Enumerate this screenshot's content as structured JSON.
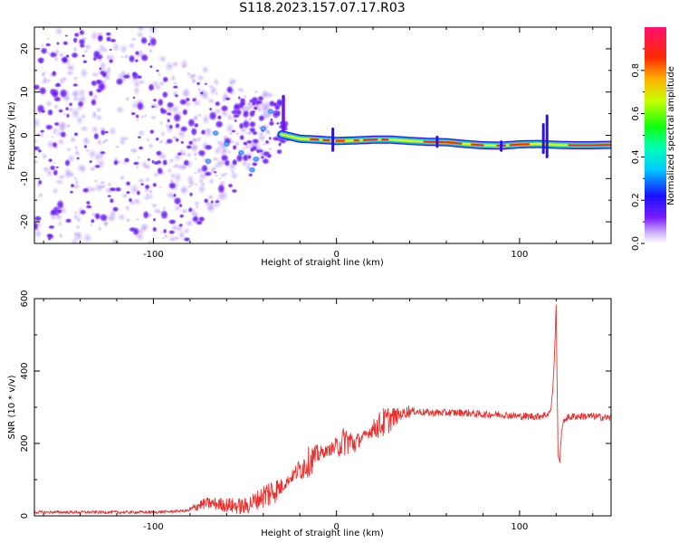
{
  "title": "S118.2023.157.07.17.R03",
  "chart_data": [
    {
      "type": "heatmap",
      "xlabel": "Height of straight line (km)",
      "ylabel": "Frequency (Hz)",
      "xlim": [
        -165,
        150
      ],
      "ylim": [
        -25,
        25
      ],
      "x_ticks": [
        -100,
        0,
        100
      ],
      "y_ticks": [
        -20,
        -10,
        0,
        10,
        20
      ],
      "colorbar": {
        "label": "Normalized spectral amplitude",
        "ticks": [
          "0.0",
          "0.2",
          "0.4",
          "0.6",
          "0.8"
        ],
        "range": [
          0,
          1
        ]
      },
      "ridge": {
        "x": [
          -30,
          -20,
          -10,
          0,
          10,
          20,
          30,
          40,
          50,
          60,
          70,
          80,
          90,
          100,
          110,
          120,
          130,
          140,
          150
        ],
        "y": [
          0.2,
          -0.8,
          -1.0,
          -1.3,
          -1.2,
          -1.0,
          -1.0,
          -1.3,
          -1.5,
          -1.6,
          -2.0,
          -2.3,
          -2.4,
          -2.1,
          -2.0,
          -2.2,
          -2.3,
          -2.3,
          -2.2
        ]
      }
    },
    {
      "type": "line",
      "xlabel": "Height of straight line (km)",
      "ylabel": "SNR (10 * v/v)",
      "xlim": [
        -165,
        150
      ],
      "ylim": [
        0,
        600
      ],
      "x_ticks": [
        -100,
        0,
        100
      ],
      "y_ticks": [
        0,
        200,
        400,
        600
      ],
      "color": "#e8312e",
      "series": [
        {
          "x": [
            -165,
            -140,
            -120,
            -100,
            -90,
            -80,
            -75,
            -70,
            -60,
            -50,
            -45,
            -40,
            -30,
            -20,
            -15,
            -10,
            -5,
            0,
            5,
            10,
            15,
            20,
            30,
            40,
            50,
            60,
            70,
            80,
            90,
            100,
            110,
            115,
            117,
            118,
            119,
            120,
            121,
            122,
            123,
            125,
            130,
            140,
            150
          ],
          "y": [
            10,
            10,
            10,
            10,
            12,
            15,
            30,
            35,
            30,
            25,
            40,
            55,
            80,
            130,
            150,
            170,
            180,
            190,
            210,
            200,
            220,
            240,
            270,
            290,
            285,
            285,
            285,
            280,
            280,
            275,
            275,
            280,
            290,
            340,
            430,
            580,
            170,
            150,
            240,
            270,
            275,
            275,
            270
          ]
        }
      ]
    }
  ]
}
